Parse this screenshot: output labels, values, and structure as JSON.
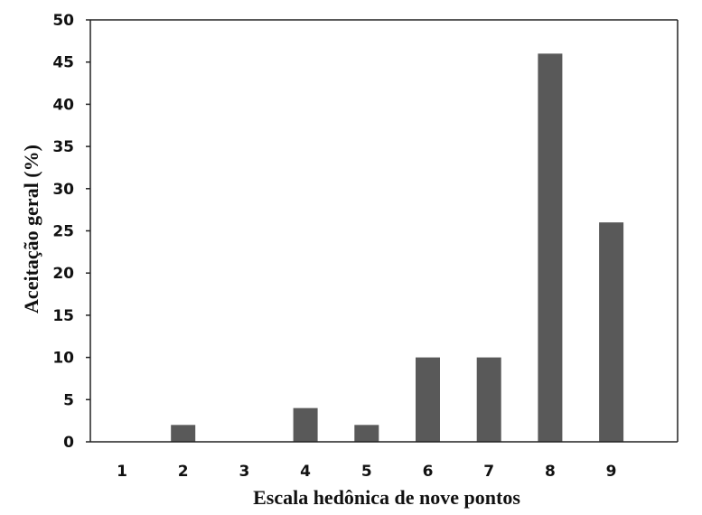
{
  "chart_data": {
    "type": "bar",
    "categories": [
      "1",
      "2",
      "3",
      "4",
      "5",
      "6",
      "7",
      "8",
      "9"
    ],
    "values": [
      0,
      2,
      0,
      4,
      2,
      10,
      10,
      46,
      26
    ],
    "title": "",
    "xlabel": "Escala hedônica de nove pontos",
    "ylabel": "Aceitação geral (%)",
    "ylim": [
      0,
      50
    ],
    "yticks": [
      0,
      5,
      10,
      15,
      20,
      25,
      30,
      35,
      40,
      45,
      50
    ],
    "grid": false,
    "bar_color": "#595959"
  }
}
